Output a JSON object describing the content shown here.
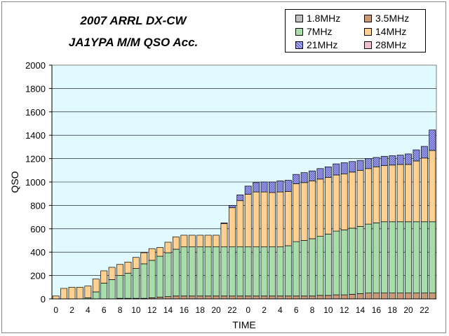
{
  "chart_data": {
    "type": "bar",
    "stacked": true,
    "title": [
      "2007 ARRL DX-CW",
      "JA1YPA  M/M  QSO Acc."
    ],
    "xlabel": "TIME",
    "ylabel": "QSO",
    "ylim": [
      0,
      2000
    ],
    "yticks": [
      0,
      200,
      400,
      600,
      800,
      1000,
      1200,
      1400,
      1600,
      1800,
      2000
    ],
    "xtick_labels": [
      "0",
      "2",
      "4",
      "6",
      "8",
      "10",
      "12",
      "14",
      "16",
      "18",
      "20",
      "22",
      "0",
      "2",
      "4",
      "6",
      "8",
      "10",
      "12",
      "14",
      "16",
      "18",
      "20",
      "22"
    ],
    "legend_position": "top-right",
    "grid": true,
    "plot_background": "#e0faff",
    "categories": [
      "0",
      "1",
      "2",
      "3",
      "4",
      "5",
      "6",
      "7",
      "8",
      "9",
      "10",
      "11",
      "12",
      "13",
      "14",
      "15",
      "16",
      "17",
      "18",
      "19",
      "20",
      "21",
      "22",
      "23",
      "0",
      "1",
      "2",
      "3",
      "4",
      "5",
      "6",
      "7",
      "8",
      "9",
      "10",
      "11",
      "12",
      "13",
      "14",
      "15",
      "16",
      "17",
      "18",
      "19",
      "20",
      "21",
      "22",
      "23"
    ],
    "series": [
      {
        "name": "1.8MHz",
        "color": "#c0c0c0",
        "values": [
          0,
          0,
          0,
          0,
          0,
          0,
          0,
          0,
          0,
          0,
          0,
          0,
          0,
          0,
          0,
          0,
          0,
          0,
          0,
          0,
          0,
          0,
          0,
          0,
          0,
          0,
          0,
          0,
          0,
          0,
          0,
          0,
          0,
          0,
          0,
          0,
          0,
          0,
          0,
          0,
          0,
          0,
          0,
          0,
          0,
          0,
          0,
          0
        ]
      },
      {
        "name": "3.5MHz",
        "color": "#cc9977",
        "values": [
          0,
          0,
          0,
          0,
          0,
          0,
          0,
          0,
          5,
          5,
          5,
          5,
          10,
          15,
          20,
          25,
          25,
          25,
          25,
          25,
          25,
          25,
          25,
          25,
          25,
          25,
          25,
          25,
          25,
          25,
          25,
          25,
          25,
          30,
          30,
          35,
          35,
          40,
          45,
          50,
          50,
          50,
          50,
          50,
          50,
          50,
          50,
          50
        ]
      },
      {
        "name": "7MHz",
        "color": "#a8dca8",
        "values": [
          0,
          0,
          0,
          0,
          10,
          60,
          135,
          165,
          195,
          215,
          255,
          295,
          320,
          350,
          375,
          400,
          420,
          420,
          420,
          420,
          420,
          420,
          420,
          420,
          420,
          420,
          420,
          420,
          420,
          430,
          465,
          475,
          490,
          505,
          525,
          545,
          555,
          565,
          575,
          590,
          600,
          610,
          610,
          610,
          610,
          610,
          610,
          610
        ]
      },
      {
        "name": "14MHz",
        "color": "#ffd090",
        "values": [
          25,
          90,
          100,
          100,
          100,
          110,
          105,
          105,
          95,
          95,
          95,
          95,
          100,
          75,
          90,
          105,
          100,
          100,
          100,
          100,
          100,
          200,
          335,
          395,
          450,
          470,
          470,
          465,
          470,
          465,
          495,
          495,
          495,
          490,
          485,
          480,
          480,
          480,
          480,
          475,
          480,
          480,
          485,
          490,
          490,
          520,
          545,
          610
        ]
      },
      {
        "name": "21MHz",
        "color": "#a0a0ee",
        "values": [
          0,
          0,
          0,
          0,
          0,
          0,
          0,
          0,
          0,
          0,
          0,
          0,
          0,
          0,
          0,
          0,
          0,
          0,
          0,
          0,
          0,
          5,
          20,
          50,
          70,
          80,
          85,
          90,
          95,
          95,
          80,
          85,
          85,
          90,
          90,
          95,
          95,
          90,
          85,
          85,
          80,
          80,
          80,
          80,
          90,
          95,
          100,
          175
        ]
      },
      {
        "name": "28MHz",
        "color": "#f2c0cc",
        "values": [
          0,
          0,
          0,
          0,
          0,
          0,
          0,
          0,
          0,
          0,
          0,
          0,
          0,
          0,
          0,
          0,
          0,
          0,
          0,
          0,
          0,
          0,
          0,
          0,
          0,
          0,
          0,
          0,
          0,
          0,
          0,
          0,
          0,
          0,
          0,
          0,
          0,
          0,
          0,
          0,
          0,
          0,
          0,
          0,
          0,
          0,
          0,
          0
        ]
      }
    ]
  }
}
